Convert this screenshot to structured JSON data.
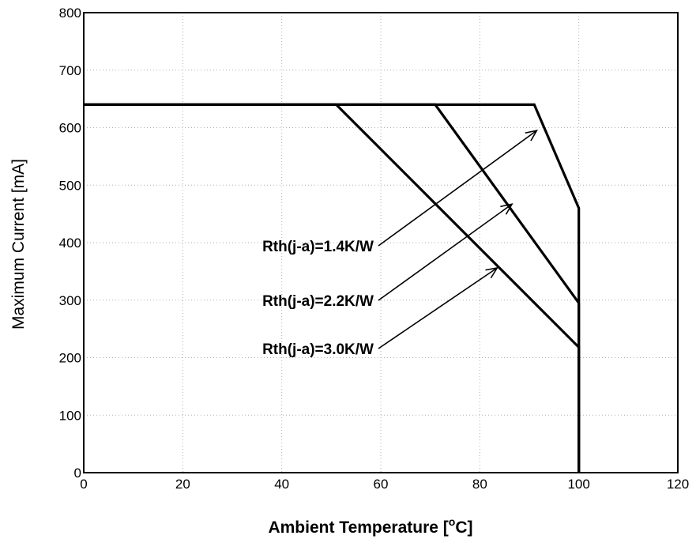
{
  "chart_data": {
    "type": "line",
    "title": "",
    "xlabel": "Ambient Temperature [",
    "xlabel_superscript": "o",
    "xlabel_suffix": "C]",
    "ylabel": "Maximum Current [mA]",
    "xlim": [
      0,
      120
    ],
    "ylim": [
      0,
      800
    ],
    "xticks": [
      "0",
      "20",
      "40",
      "60",
      "80",
      "100",
      "120"
    ],
    "yticks": [
      "0",
      "100",
      "200",
      "300",
      "400",
      "500",
      "600",
      "700",
      "800"
    ],
    "grid": true,
    "series": [
      {
        "name": "Rth(j-a)=1.4K/W",
        "x": [
          0,
          91,
          100,
          100
        ],
        "y": [
          640,
          640,
          460,
          0
        ]
      },
      {
        "name": "Rth(j-a)=2.2K/W",
        "x": [
          0,
          71,
          100,
          100
        ],
        "y": [
          640,
          640,
          295,
          0
        ]
      },
      {
        "name": "Rth(j-a)=3.0K/W",
        "x": [
          0,
          51,
          100,
          100
        ],
        "y": [
          640,
          640,
          218,
          0
        ]
      }
    ],
    "annotations": [
      {
        "text": "Rth(j-a)=1.4K/W",
        "arrow_to": [
          91.5,
          595
        ]
      },
      {
        "text": "Rth(j-a)=2.2K/W",
        "arrow_to": [
          86.5,
          467
        ]
      },
      {
        "text": "Rth(j-a)=3.0K/W",
        "arrow_to": [
          83.5,
          356
        ]
      }
    ]
  }
}
